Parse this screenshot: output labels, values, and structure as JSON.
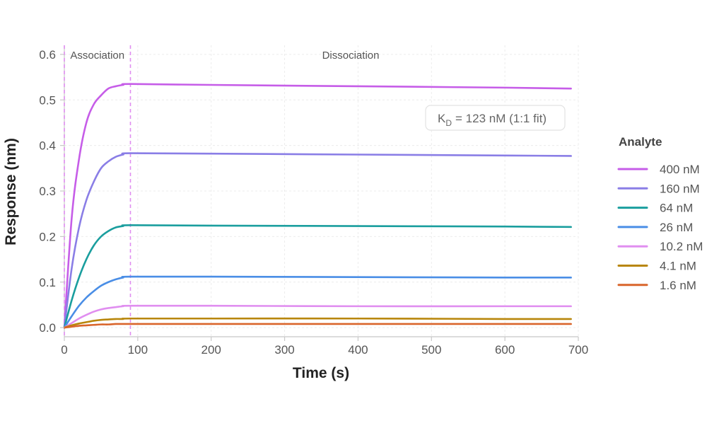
{
  "chart_data": {
    "type": "line",
    "xlabel": "Time (s)",
    "ylabel": "Response (nm)",
    "xlim": [
      0,
      700
    ],
    "ylim": [
      -0.02,
      0.62
    ],
    "x_ticks": [
      0,
      100,
      200,
      300,
      400,
      500,
      600,
      700
    ],
    "y_ticks": [
      0.0,
      0.1,
      0.2,
      0.3,
      0.4,
      0.5,
      0.6
    ],
    "y_tick_labels": [
      "0.0",
      "0.1",
      "0.2",
      "0.3",
      "0.4",
      "0.5",
      "0.6"
    ],
    "grid": true,
    "association_end": 90,
    "phase_labels": [
      {
        "text": "Association",
        "x": 45
      },
      {
        "text": "Dissociation",
        "x": 390
      }
    ],
    "annotation": {
      "k": "K",
      "sub": "D",
      "rest": "= 123 nM   (1:1 fit)"
    },
    "legend": {
      "title": "Analyte",
      "position": "right"
    },
    "series": [
      {
        "name": "400 nM",
        "color": "#c65de8",
        "points": [
          [
            0,
            0
          ],
          [
            10,
            0.24
          ],
          [
            20,
            0.37
          ],
          [
            30,
            0.45
          ],
          [
            40,
            0.49
          ],
          [
            50,
            0.51
          ],
          [
            60,
            0.525
          ],
          [
            70,
            0.53
          ],
          [
            80,
            0.533
          ],
          [
            90,
            0.535
          ],
          [
            200,
            0.533
          ],
          [
            400,
            0.53
          ],
          [
            600,
            0.527
          ],
          [
            690,
            0.525
          ]
        ]
      },
      {
        "name": "160 nM",
        "color": "#8a7ee6",
        "points": [
          [
            0,
            0
          ],
          [
            10,
            0.13
          ],
          [
            20,
            0.22
          ],
          [
            30,
            0.28
          ],
          [
            40,
            0.32
          ],
          [
            50,
            0.35
          ],
          [
            60,
            0.365
          ],
          [
            70,
            0.375
          ],
          [
            80,
            0.38
          ],
          [
            90,
            0.383
          ],
          [
            200,
            0.382
          ],
          [
            400,
            0.38
          ],
          [
            600,
            0.378
          ],
          [
            690,
            0.377
          ]
        ]
      },
      {
        "name": "64 nM",
        "color": "#1a9e9e",
        "points": [
          [
            0,
            0
          ],
          [
            10,
            0.06
          ],
          [
            20,
            0.11
          ],
          [
            30,
            0.15
          ],
          [
            40,
            0.18
          ],
          [
            50,
            0.2
          ],
          [
            60,
            0.212
          ],
          [
            70,
            0.22
          ],
          [
            80,
            0.223
          ],
          [
            90,
            0.225
          ],
          [
            200,
            0.224
          ],
          [
            400,
            0.223
          ],
          [
            600,
            0.222
          ],
          [
            690,
            0.221
          ]
        ]
      },
      {
        "name": "26 nM",
        "color": "#4a8ee6",
        "points": [
          [
            0,
            0
          ],
          [
            10,
            0.025
          ],
          [
            20,
            0.048
          ],
          [
            30,
            0.066
          ],
          [
            40,
            0.08
          ],
          [
            50,
            0.092
          ],
          [
            60,
            0.1
          ],
          [
            70,
            0.106
          ],
          [
            80,
            0.11
          ],
          [
            90,
            0.112
          ],
          [
            200,
            0.112
          ],
          [
            400,
            0.111
          ],
          [
            600,
            0.11
          ],
          [
            690,
            0.11
          ]
        ]
      },
      {
        "name": "10.2 nM",
        "color": "#e08ef0",
        "points": [
          [
            0,
            0
          ],
          [
            10,
            0.01
          ],
          [
            20,
            0.02
          ],
          [
            30,
            0.028
          ],
          [
            40,
            0.035
          ],
          [
            50,
            0.04
          ],
          [
            60,
            0.043
          ],
          [
            70,
            0.045
          ],
          [
            80,
            0.047
          ],
          [
            90,
            0.048
          ],
          [
            200,
            0.048
          ],
          [
            400,
            0.047
          ],
          [
            600,
            0.047
          ],
          [
            690,
            0.047
          ]
        ]
      },
      {
        "name": "4.1 nM",
        "color": "#b8860b",
        "points": [
          [
            0,
            0
          ],
          [
            10,
            0.005
          ],
          [
            20,
            0.009
          ],
          [
            30,
            0.012
          ],
          [
            40,
            0.015
          ],
          [
            50,
            0.017
          ],
          [
            60,
            0.018
          ],
          [
            70,
            0.019
          ],
          [
            80,
            0.019
          ],
          [
            90,
            0.02
          ],
          [
            200,
            0.02
          ],
          [
            400,
            0.02
          ],
          [
            600,
            0.019
          ],
          [
            690,
            0.019
          ]
        ]
      },
      {
        "name": "1.6 nM",
        "color": "#d9652b",
        "points": [
          [
            0,
            0
          ],
          [
            10,
            0.002
          ],
          [
            20,
            0.004
          ],
          [
            30,
            0.005
          ],
          [
            40,
            0.006
          ],
          [
            50,
            0.007
          ],
          [
            60,
            0.007
          ],
          [
            70,
            0.008
          ],
          [
            80,
            0.008
          ],
          [
            90,
            0.008
          ],
          [
            200,
            0.008
          ],
          [
            400,
            0.008
          ],
          [
            600,
            0.008
          ],
          [
            690,
            0.008
          ]
        ]
      }
    ]
  }
}
